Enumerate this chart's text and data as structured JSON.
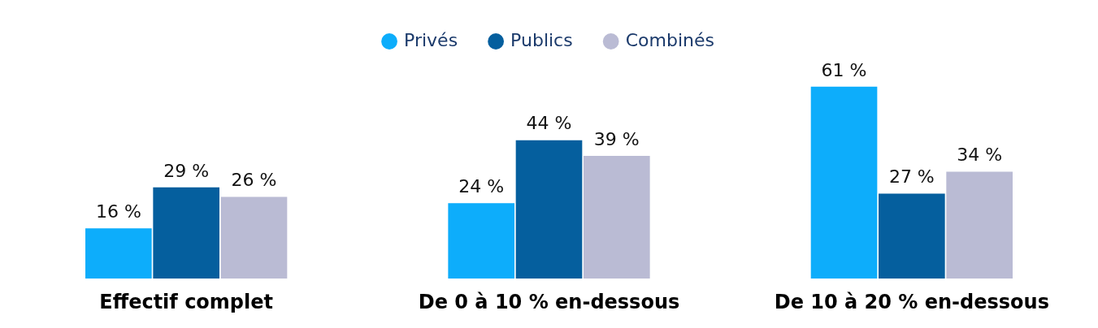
{
  "chart_data": {
    "type": "bar",
    "categories": [
      "Effectif complet",
      "De 0 à 10 % en-dessous",
      "De 10 à 20 % en-dessous"
    ],
    "series": [
      {
        "name": "Privés",
        "color": "#0dadfb",
        "values": [
          16,
          24,
          61
        ],
        "value_labels": [
          "16 %",
          "24 %",
          "61 %"
        ]
      },
      {
        "name": "Publics",
        "color": "#055f9e",
        "values": [
          29,
          44,
          27
        ],
        "value_labels": [
          "29 %",
          "44 %",
          "27 %"
        ]
      },
      {
        "name": "Combinés",
        "color": "#babbd4",
        "values": [
          26,
          39,
          34
        ],
        "value_labels": [
          "26 %",
          "39 %",
          "34 %"
        ]
      }
    ],
    "legend": "top",
    "grid": false
  }
}
